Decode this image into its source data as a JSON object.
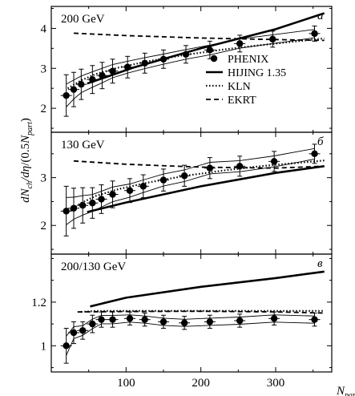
{
  "chart_data": {
    "type": "scatter",
    "ylabel": "dN_ch/dη/(0.5N_part)",
    "xlabel": "N_part",
    "x_axis": {
      "range": [
        0,
        375
      ],
      "ticks": [
        100,
        200,
        300
      ],
      "tick_labels": [
        "100",
        "200",
        "300"
      ]
    },
    "legend": {
      "placement": "right of top panel",
      "entries": [
        {
          "name": "PHENIX",
          "style": "dots"
        },
        {
          "name": "HIJING 1.35",
          "style": "thick-solid"
        },
        {
          "name": "KLN",
          "style": "dotted"
        },
        {
          "name": "EKRT",
          "style": "dashed"
        }
      ]
    },
    "panels": [
      {
        "title": "200 GeV",
        "letter": "а",
        "ylim": [
          1.4,
          4.55
        ],
        "yticks": [
          2,
          3,
          4
        ],
        "points": [
          {
            "x": 20,
            "y": 2.32,
            "err": 0.52
          },
          {
            "x": 30,
            "y": 2.47,
            "err": 0.43
          },
          {
            "x": 40,
            "y": 2.6,
            "err": 0.38
          },
          {
            "x": 55,
            "y": 2.72,
            "err": 0.35
          },
          {
            "x": 68,
            "y": 2.82,
            "err": 0.33
          },
          {
            "x": 82,
            "y": 2.93,
            "err": 0.3
          },
          {
            "x": 102,
            "y": 3.03,
            "err": 0.27
          },
          {
            "x": 125,
            "y": 3.13,
            "err": 0.25
          },
          {
            "x": 150,
            "y": 3.23,
            "err": 0.23
          },
          {
            "x": 180,
            "y": 3.35,
            "err": 0.22
          },
          {
            "x": 212,
            "y": 3.46,
            "err": 0.22
          },
          {
            "x": 252,
            "y": 3.62,
            "err": 0.21
          },
          {
            "x": 296,
            "y": 3.73,
            "err": 0.2
          },
          {
            "x": 352,
            "y": 3.87,
            "err": 0.19
          }
        ],
        "hijing": {
          "x": [
            48,
            110,
            200,
            300,
            365
          ],
          "y": [
            2.62,
            3.02,
            3.5,
            3.98,
            4.38
          ]
        },
        "kln": {
          "x": [
            22,
            40,
            60,
            90,
            130,
            180,
            230,
            280,
            330,
            365
          ],
          "y": [
            2.5,
            2.7,
            2.86,
            3.02,
            3.18,
            3.34,
            3.47,
            3.58,
            3.68,
            3.75
          ]
        },
        "ekrt": {
          "x": [
            30,
            100,
            200,
            300,
            365
          ],
          "y": [
            3.88,
            3.82,
            3.76,
            3.72,
            3.7
          ]
        }
      },
      {
        "title": "130 GeV",
        "letter": "б",
        "ylim": [
          1.4,
          3.95
        ],
        "yticks": [
          2,
          3
        ],
        "points": [
          {
            "x": 20,
            "y": 2.3,
            "err": 0.52
          },
          {
            "x": 30,
            "y": 2.36,
            "err": 0.42
          },
          {
            "x": 42,
            "y": 2.42,
            "err": 0.37
          },
          {
            "x": 55,
            "y": 2.47,
            "err": 0.32
          },
          {
            "x": 67,
            "y": 2.55,
            "err": 0.3
          },
          {
            "x": 82,
            "y": 2.65,
            "err": 0.28
          },
          {
            "x": 105,
            "y": 2.73,
            "err": 0.25
          },
          {
            "x": 123,
            "y": 2.82,
            "err": 0.24
          },
          {
            "x": 150,
            "y": 2.95,
            "err": 0.23
          },
          {
            "x": 178,
            "y": 3.04,
            "err": 0.22
          },
          {
            "x": 212,
            "y": 3.2,
            "err": 0.22
          },
          {
            "x": 252,
            "y": 3.24,
            "err": 0.21
          },
          {
            "x": 298,
            "y": 3.34,
            "err": 0.21
          },
          {
            "x": 352,
            "y": 3.5,
            "err": 0.2
          }
        ],
        "hijing": {
          "x": [
            48,
            100,
            200,
            300,
            365
          ],
          "y": [
            2.28,
            2.48,
            2.82,
            3.1,
            3.24
          ]
        },
        "kln": {
          "x": [
            22,
            40,
            60,
            90,
            130,
            180,
            230,
            280,
            330,
            365
          ],
          "y": [
            2.28,
            2.47,
            2.62,
            2.76,
            2.9,
            3.04,
            3.15,
            3.24,
            3.31,
            3.36
          ]
        },
        "ekrt": {
          "x": [
            30,
            100,
            200,
            300,
            365
          ],
          "y": [
            3.35,
            3.28,
            3.22,
            3.2,
            3.24
          ]
        }
      },
      {
        "title": "200/130 GeV",
        "letter": "в",
        "ylim": [
          0.88,
          1.42
        ],
        "yticks": [
          1,
          1.2
        ],
        "points": [
          {
            "x": 20,
            "y": 1.0,
            "err": 0.08
          },
          {
            "x": 30,
            "y": 1.06,
            "err": 0.05
          },
          {
            "x": 42,
            "y": 1.07,
            "err": 0.04
          },
          {
            "x": 55,
            "y": 1.1,
            "err": 0.04
          },
          {
            "x": 67,
            "y": 1.12,
            "err": 0.035
          },
          {
            "x": 82,
            "y": 1.12,
            "err": 0.035
          },
          {
            "x": 105,
            "y": 1.125,
            "err": 0.03
          },
          {
            "x": 125,
            "y": 1.12,
            "err": 0.03
          },
          {
            "x": 150,
            "y": 1.11,
            "err": 0.03
          },
          {
            "x": 178,
            "y": 1.105,
            "err": 0.03
          },
          {
            "x": 212,
            "y": 1.11,
            "err": 0.03
          },
          {
            "x": 252,
            "y": 1.115,
            "err": 0.03
          },
          {
            "x": 298,
            "y": 1.125,
            "err": 0.03
          },
          {
            "x": 352,
            "y": 1.12,
            "err": 0.03
          }
        ],
        "hijing": {
          "x": [
            52,
            100,
            200,
            300,
            365
          ],
          "y": [
            1.18,
            1.22,
            1.27,
            1.31,
            1.34
          ]
        },
        "kln": {
          "x": [
            40,
            60,
            100,
            200,
            300,
            365
          ],
          "y": [
            1.155,
            1.16,
            1.16,
            1.16,
            1.16,
            1.16
          ]
        },
        "ekrt": {
          "x": [
            35,
            100,
            200,
            300,
            365
          ],
          "y": [
            1.155,
            1.157,
            1.158,
            1.155,
            1.15
          ]
        }
      }
    ]
  }
}
